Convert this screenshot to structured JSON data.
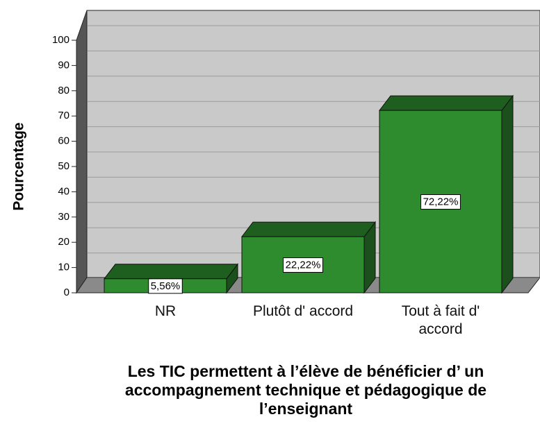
{
  "chart_data": {
    "type": "bar",
    "categories": [
      "NR",
      "Plutôt d' accord",
      "Tout à fait d' accord"
    ],
    "values": [
      5.56,
      22.22,
      72.22
    ],
    "value_labels": [
      "5,56%",
      "22,22%",
      "72,22%"
    ],
    "color": "#2e8b2e",
    "ylabel": "Pourcentage",
    "xlabel": "Les TIC permettent à l’élève de bénéficier d’ un accompagnement technique et pédagogique de l’enseignant",
    "ylim": [
      0,
      100
    ],
    "yticks": [
      0,
      10,
      20,
      30,
      40,
      50,
      60,
      70,
      80,
      90,
      100
    ],
    "grid": true
  }
}
